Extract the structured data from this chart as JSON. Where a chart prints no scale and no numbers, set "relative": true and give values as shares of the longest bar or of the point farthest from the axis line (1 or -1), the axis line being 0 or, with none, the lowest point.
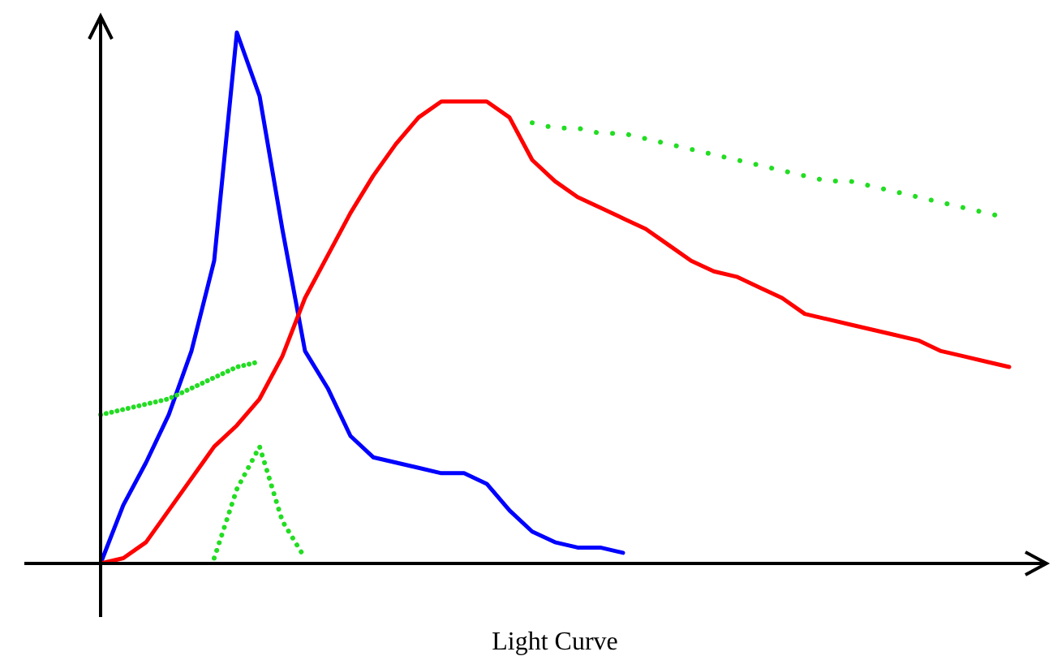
{
  "chart_data": {
    "type": "line",
    "relative": true,
    "xlabel": "Light Curve",
    "marker": "none",
    "line_style": "solid",
    "categories": [
      null,
      null,
      null,
      null,
      null,
      null,
      null,
      null,
      null,
      null,
      null,
      null,
      null,
      null,
      null,
      null,
      null,
      null,
      null,
      null,
      null,
      null,
      null,
      null,
      null,
      null,
      null,
      null,
      null,
      null,
      null,
      null,
      null,
      null,
      null,
      null,
      null,
      null,
      null,
      null,
      null
    ],
    "series": [
      {
        "color": "#0000ff",
        "values": [
          0,
          0.11,
          0.19,
          0.28,
          0.4,
          0.57,
          1,
          0.88,
          0.63,
          0.4,
          0.33,
          0.24,
          0.2,
          0.19,
          0.18,
          0.17,
          0.17,
          0.15,
          0.1,
          0.06,
          0.04,
          0.03,
          0.03,
          0.02,
          null,
          null,
          null,
          null,
          null,
          null,
          null,
          null,
          null,
          null,
          null,
          null,
          null,
          null,
          null,
          null,
          null
        ]
      },
      {
        "color": "#ff0000",
        "values": [
          0,
          0.01,
          0.04,
          0.1,
          0.16,
          0.22,
          0.26,
          0.31,
          0.39,
          0.5,
          0.58,
          0.66,
          0.73,
          0.79,
          0.84,
          0.87,
          0.87,
          0.87,
          0.84,
          0.76,
          0.72,
          0.69,
          0.67,
          0.65,
          0.63,
          0.6,
          0.57,
          0.55,
          0.54,
          0.52,
          0.5,
          0.47,
          0.46,
          0.45,
          0.44,
          0.43,
          0.42,
          0.4,
          0.39,
          0.38,
          0.37
        ]
      },
      {
        "color": "#22dd22",
        "line_style": "dotted",
        "values": [
          0.28,
          0.29,
          0.3,
          0.31,
          0.33,
          0.35,
          0.37,
          0.38,
          null,
          null,
          null,
          null,
          null,
          null,
          null,
          null,
          null,
          null,
          null,
          null,
          null,
          null,
          null,
          null,
          null,
          null,
          null,
          null,
          null,
          null,
          null,
          null,
          null,
          null,
          null,
          null,
          null,
          null,
          null,
          null,
          null
        ]
      },
      {
        "color": "#22dd22",
        "line_style": "dotted",
        "values": [
          null,
          null,
          null,
          null,
          null,
          0.01,
          0.14,
          0.22,
          0.08,
          0.01,
          null,
          null,
          null,
          null,
          null,
          null,
          null,
          null,
          null,
          null,
          null,
          null,
          null,
          null,
          null,
          null,
          null,
          null,
          null,
          null,
          null,
          null,
          null,
          null,
          null,
          null,
          null,
          null,
          null,
          null,
          null
        ]
      },
      {
        "color": "#22dd22",
        "line_style": "dotted",
        "values": [
          null,
          null,
          null,
          null,
          null,
          null,
          null,
          null,
          null,
          null,
          null,
          null,
          null,
          null,
          null,
          null,
          null,
          null,
          null,
          0.83,
          0.82,
          0.82,
          0.81,
          0.81,
          0.8,
          0.79,
          0.78,
          0.77,
          0.76,
          0.75,
          0.74,
          0.73,
          0.72,
          0.72,
          0.71,
          0.7,
          0.69,
          0.68,
          0.67,
          0.66,
          0.65
        ]
      }
    ]
  }
}
